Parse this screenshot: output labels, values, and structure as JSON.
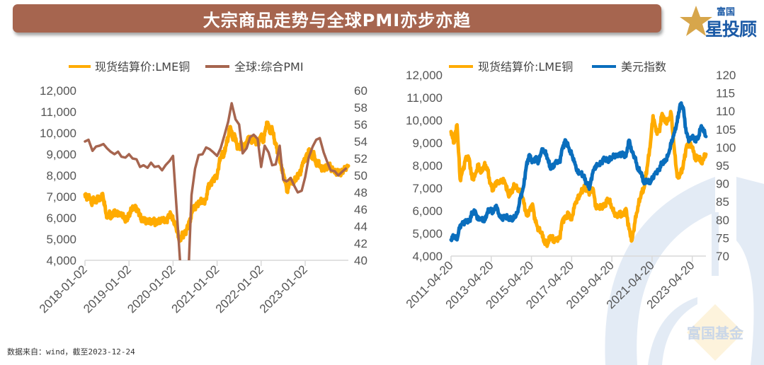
{
  "header": {
    "title": "大宗商品走势与全球PMI亦步亦趋",
    "logo_top": "富国",
    "logo_main": "星投顾",
    "logo_star_char": "星",
    "logo_rest": "投顾"
  },
  "watermark": {
    "text": "富国基金"
  },
  "footer": {
    "source": "数据来自：wind，截至2023-12-24"
  },
  "colors": {
    "banner": "#a6654f",
    "copper": "#ffab00",
    "pmi": "#a6654f",
    "usd": "#0a6ebd",
    "axis": "#d9d9d9",
    "watermark_blue": "#e3ebf5",
    "watermark_yellow": "#fdf3dc"
  },
  "chart_data": [
    {
      "type": "line",
      "title": "",
      "legend": [
        "现货结算价:LME铜",
        "全球:综合PMI"
      ],
      "legend_position": "top",
      "x_ticks": [
        "2018-01-02",
        "2019-01-02",
        "2020-01-02",
        "2021-01-02",
        "2022-01-02",
        "2023-01-02"
      ],
      "x_range": [
        2018.0,
        2023.98
      ],
      "y_left": {
        "ticks": [
          "4,000",
          "5,000",
          "6,000",
          "7,000",
          "8,000",
          "9,000",
          "10,000",
          "11,000",
          "12,000"
        ],
        "range": [
          4000,
          12000
        ]
      },
      "y_right": {
        "ticks": [
          "40",
          "42",
          "44",
          "46",
          "48",
          "50",
          "52",
          "54",
          "56",
          "58",
          "60"
        ],
        "range": [
          40,
          60
        ]
      },
      "grid": false,
      "series": [
        {
          "name": "现货结算价:LME铜",
          "axis": "left",
          "x": [
            2018.0,
            2018.05,
            2018.1,
            2018.15,
            2018.2,
            2018.25,
            2018.3,
            2018.35,
            2018.4,
            2018.45,
            2018.5,
            2018.55,
            2018.6,
            2018.65,
            2018.7,
            2018.75,
            2018.8,
            2018.85,
            2018.9,
            2018.95,
            2019.0,
            2019.05,
            2019.1,
            2019.15,
            2019.2,
            2019.25,
            2019.3,
            2019.35,
            2019.4,
            2019.45,
            2019.5,
            2019.55,
            2019.6,
            2019.65,
            2019.7,
            2019.75,
            2019.8,
            2019.85,
            2019.9,
            2019.95,
            2020.0,
            2020.05,
            2020.1,
            2020.15,
            2020.2,
            2020.25,
            2020.3,
            2020.35,
            2020.4,
            2020.45,
            2020.5,
            2020.55,
            2020.6,
            2020.65,
            2020.7,
            2020.75,
            2020.8,
            2020.85,
            2020.9,
            2020.95,
            2021.0,
            2021.05,
            2021.1,
            2021.15,
            2021.2,
            2021.25,
            2021.3,
            2021.35,
            2021.4,
            2021.45,
            2021.5,
            2021.55,
            2021.6,
            2021.65,
            2021.7,
            2021.75,
            2021.8,
            2021.85,
            2021.9,
            2021.95,
            2022.0,
            2022.05,
            2022.1,
            2022.15,
            2022.2,
            2022.25,
            2022.3,
            2022.35,
            2022.4,
            2022.45,
            2022.5,
            2022.55,
            2022.6,
            2022.65,
            2022.7,
            2022.75,
            2022.8,
            2022.85,
            2022.9,
            2022.95,
            2023.0,
            2023.05,
            2023.1,
            2023.15,
            2023.2,
            2023.25,
            2023.3,
            2023.35,
            2023.4,
            2023.45,
            2023.5,
            2023.55,
            2023.6,
            2023.65,
            2023.7,
            2023.75,
            2023.8,
            2023.85,
            2023.9,
            2023.98
          ],
          "y": [
            7100,
            6900,
            7000,
            6700,
            6900,
            6800,
            7000,
            6850,
            7150,
            6550,
            6000,
            6200,
            6000,
            6300,
            6200,
            6250,
            6100,
            6200,
            5900,
            5950,
            6100,
            6350,
            6500,
            6450,
            6400,
            6100,
            5900,
            6000,
            5800,
            5900,
            5700,
            5900,
            5700,
            5800,
            5850,
            5900,
            5950,
            5850,
            6100,
            6200,
            5900,
            5700,
            5300,
            4900,
            5200,
            5200,
            5400,
            5700,
            6000,
            6400,
            6500,
            6600,
            6700,
            6800,
            6700,
            6900,
            7500,
            7600,
            7800,
            7900,
            8000,
            8600,
            9000,
            8900,
            9400,
            9800,
            10300,
            9800,
            9900,
            9400,
            9300,
            9500,
            9300,
            9400,
            9800,
            9700,
            9600,
            9800,
            9500,
            9600,
            9900,
            9600,
            10200,
            10500,
            10000,
            10200,
            9700,
            9300,
            9000,
            8500,
            8100,
            7700,
            7200,
            7800,
            7600,
            7700,
            7900,
            8000,
            8200,
            8600,
            8800,
            9000,
            9200,
            8800,
            9000,
            8500,
            8600,
            8400,
            8300,
            8400,
            8400,
            8500,
            8300,
            8200,
            8100,
            8200,
            8000,
            8200,
            8300,
            8450
          ]
        },
        {
          "name": "全球:综合PMI",
          "axis": "right",
          "x": [
            2018.0,
            2018.08,
            2018.17,
            2018.25,
            2018.33,
            2018.42,
            2018.5,
            2018.58,
            2018.67,
            2018.75,
            2018.83,
            2018.92,
            2019.0,
            2019.08,
            2019.17,
            2019.25,
            2019.33,
            2019.42,
            2019.5,
            2019.58,
            2019.67,
            2019.75,
            2019.83,
            2019.92,
            2020.0,
            2020.08,
            2020.17,
            2020.25,
            2020.33,
            2020.42,
            2020.5,
            2020.58,
            2020.67,
            2020.75,
            2020.83,
            2020.92,
            2021.0,
            2021.08,
            2021.17,
            2021.25,
            2021.33,
            2021.42,
            2021.5,
            2021.58,
            2021.67,
            2021.75,
            2021.83,
            2021.92,
            2022.0,
            2022.08,
            2022.17,
            2022.25,
            2022.33,
            2022.42,
            2022.5,
            2022.58,
            2022.67,
            2022.75,
            2022.83,
            2022.92,
            2023.0,
            2023.08,
            2023.17,
            2023.25,
            2023.33,
            2023.42,
            2023.5,
            2023.58,
            2023.67,
            2023.75,
            2023.83,
            2023.92
          ],
          "y": [
            54.0,
            54.2,
            52.9,
            53.4,
            53.5,
            53.7,
            53.2,
            52.8,
            52.5,
            52.8,
            52.2,
            52.1,
            52.5,
            52.0,
            51.9,
            51.0,
            51.2,
            50.9,
            51.5,
            51.0,
            51.1,
            50.6,
            51.2,
            51.7,
            52.3,
            46.1,
            39.0,
            26.5,
            35.9,
            47.7,
            50.8,
            52.4,
            52.5,
            53.3,
            53.1,
            52.7,
            52.3,
            53.2,
            54.8,
            56.3,
            58.5,
            56.6,
            56.0,
            52.6,
            53.2,
            54.5,
            54.8,
            54.3,
            51.0,
            53.5,
            52.7,
            51.2,
            51.3,
            53.5,
            49.5,
            49.3,
            49.7,
            48.8,
            48.0,
            48.2,
            49.8,
            52.1,
            53.4,
            54.2,
            54.4,
            52.7,
            51.6,
            50.6,
            50.5,
            50.0,
            50.4,
            50.8
          ]
        }
      ]
    },
    {
      "type": "line",
      "title": "",
      "legend": [
        "现货结算价:LME铜",
        "美元指数"
      ],
      "legend_position": "top",
      "x_ticks": [
        "2011-04-20",
        "2013-04-20",
        "2015-04-20",
        "2017-04-20",
        "2019-04-20",
        "2021-04-20",
        "2023-04-20"
      ],
      "x_range": [
        2011.3,
        2023.98
      ],
      "y_left": {
        "ticks": [
          "4,000",
          "5,000",
          "6,000",
          "7,000",
          "8,000",
          "9,000",
          "10,000",
          "11,000",
          "12,000"
        ],
        "range": [
          4000,
          12000
        ]
      },
      "y_right": {
        "ticks": [
          "70",
          "75",
          "80",
          "85",
          "90",
          "95",
          "100",
          "105",
          "110",
          "115",
          "120"
        ],
        "range": [
          70,
          120
        ]
      },
      "grid": false,
      "series": [
        {
          "name": "现货结算价:LME铜",
          "axis": "left",
          "x": [
            2011.3,
            2011.45,
            2011.6,
            2011.75,
            2011.9,
            2012.05,
            2012.2,
            2012.35,
            2012.5,
            2012.65,
            2012.8,
            2012.95,
            2013.1,
            2013.25,
            2013.4,
            2013.55,
            2013.7,
            2013.85,
            2014.0,
            2014.15,
            2014.3,
            2014.45,
            2014.6,
            2014.75,
            2014.9,
            2015.05,
            2015.2,
            2015.35,
            2015.5,
            2015.65,
            2015.8,
            2015.95,
            2016.1,
            2016.25,
            2016.4,
            2016.55,
            2016.7,
            2016.85,
            2017.0,
            2017.15,
            2017.3,
            2017.45,
            2017.6,
            2017.75,
            2017.9,
            2018.05,
            2018.2,
            2018.35,
            2018.5,
            2018.65,
            2018.8,
            2018.95,
            2019.1,
            2019.25,
            2019.4,
            2019.55,
            2019.7,
            2019.85,
            2020.0,
            2020.15,
            2020.3,
            2020.45,
            2020.6,
            2020.75,
            2020.9,
            2021.05,
            2021.2,
            2021.35,
            2021.5,
            2021.65,
            2021.8,
            2021.95,
            2022.1,
            2022.25,
            2022.4,
            2022.55,
            2022.7,
            2022.85,
            2023.0,
            2023.15,
            2023.3,
            2023.45,
            2023.6,
            2023.75,
            2023.98
          ],
          "y": [
            9500,
            9000,
            9800,
            7400,
            7800,
            8400,
            8300,
            7400,
            7600,
            8000,
            7700,
            8000,
            7900,
            7200,
            6900,
            7300,
            7200,
            7400,
            7200,
            6700,
            6800,
            7100,
            7000,
            6800,
            6500,
            5800,
            6000,
            6300,
            5500,
            5200,
            5000,
            4600,
            4500,
            4900,
            4700,
            4700,
            4800,
            5600,
            5700,
            5900,
            5600,
            6300,
            6500,
            6800,
            7000,
            7000,
            6800,
            7000,
            6200,
            6100,
            6200,
            6200,
            6500,
            6300,
            5900,
            5800,
            5900,
            5800,
            6100,
            5200,
            4700,
            5500,
            6200,
            6700,
            7000,
            7900,
            8800,
            10200,
            9500,
            9500,
            10300,
            9900,
            10000,
            10300,
            8800,
            7500,
            7600,
            8000,
            8800,
            9000,
            8800,
            8300,
            8400,
            8100,
            8500
          ]
        },
        {
          "name": "美元指数",
          "axis": "right",
          "x": [
            2011.3,
            2011.45,
            2011.6,
            2011.75,
            2011.9,
            2012.05,
            2012.2,
            2012.35,
            2012.5,
            2012.65,
            2012.8,
            2012.95,
            2013.1,
            2013.25,
            2013.4,
            2013.55,
            2013.7,
            2013.85,
            2014.0,
            2014.15,
            2014.3,
            2014.45,
            2014.6,
            2014.75,
            2014.9,
            2015.05,
            2015.2,
            2015.35,
            2015.5,
            2015.65,
            2015.8,
            2015.95,
            2016.1,
            2016.25,
            2016.4,
            2016.55,
            2016.7,
            2016.85,
            2017.0,
            2017.15,
            2017.3,
            2017.45,
            2017.6,
            2017.75,
            2017.9,
            2018.05,
            2018.2,
            2018.35,
            2018.5,
            2018.65,
            2018.8,
            2018.95,
            2019.1,
            2019.25,
            2019.4,
            2019.55,
            2019.7,
            2019.85,
            2020.0,
            2020.15,
            2020.3,
            2020.45,
            2020.6,
            2020.75,
            2020.9,
            2021.05,
            2021.2,
            2021.35,
            2021.5,
            2021.65,
            2021.8,
            2021.95,
            2022.1,
            2022.25,
            2022.4,
            2022.55,
            2022.7,
            2022.85,
            2023.0,
            2023.15,
            2023.3,
            2023.45,
            2023.6,
            2023.75,
            2023.98
          ],
          "y": [
            74.5,
            75.5,
            74.5,
            78.5,
            79,
            80,
            79.5,
            82,
            82.5,
            80,
            80.5,
            79.5,
            82,
            83,
            82,
            84,
            81,
            80.5,
            81,
            80.5,
            80,
            80.5,
            82,
            86,
            89,
            95,
            98,
            96,
            97,
            96,
            99,
            99,
            97,
            94,
            95,
            96,
            96,
            100,
            102,
            100,
            98,
            96,
            93,
            93,
            92,
            90,
            89,
            93,
            95,
            95,
            96,
            97,
            96,
            97,
            97.5,
            98,
            98,
            98.5,
            97.5,
            102,
            99,
            97,
            94,
            93,
            90,
            91,
            90,
            92,
            93,
            94,
            96,
            96,
            98,
            101,
            104,
            107,
            112,
            111,
            104,
            102,
            103,
            102,
            102.5,
            106,
            103
          ]
        }
      ]
    }
  ]
}
